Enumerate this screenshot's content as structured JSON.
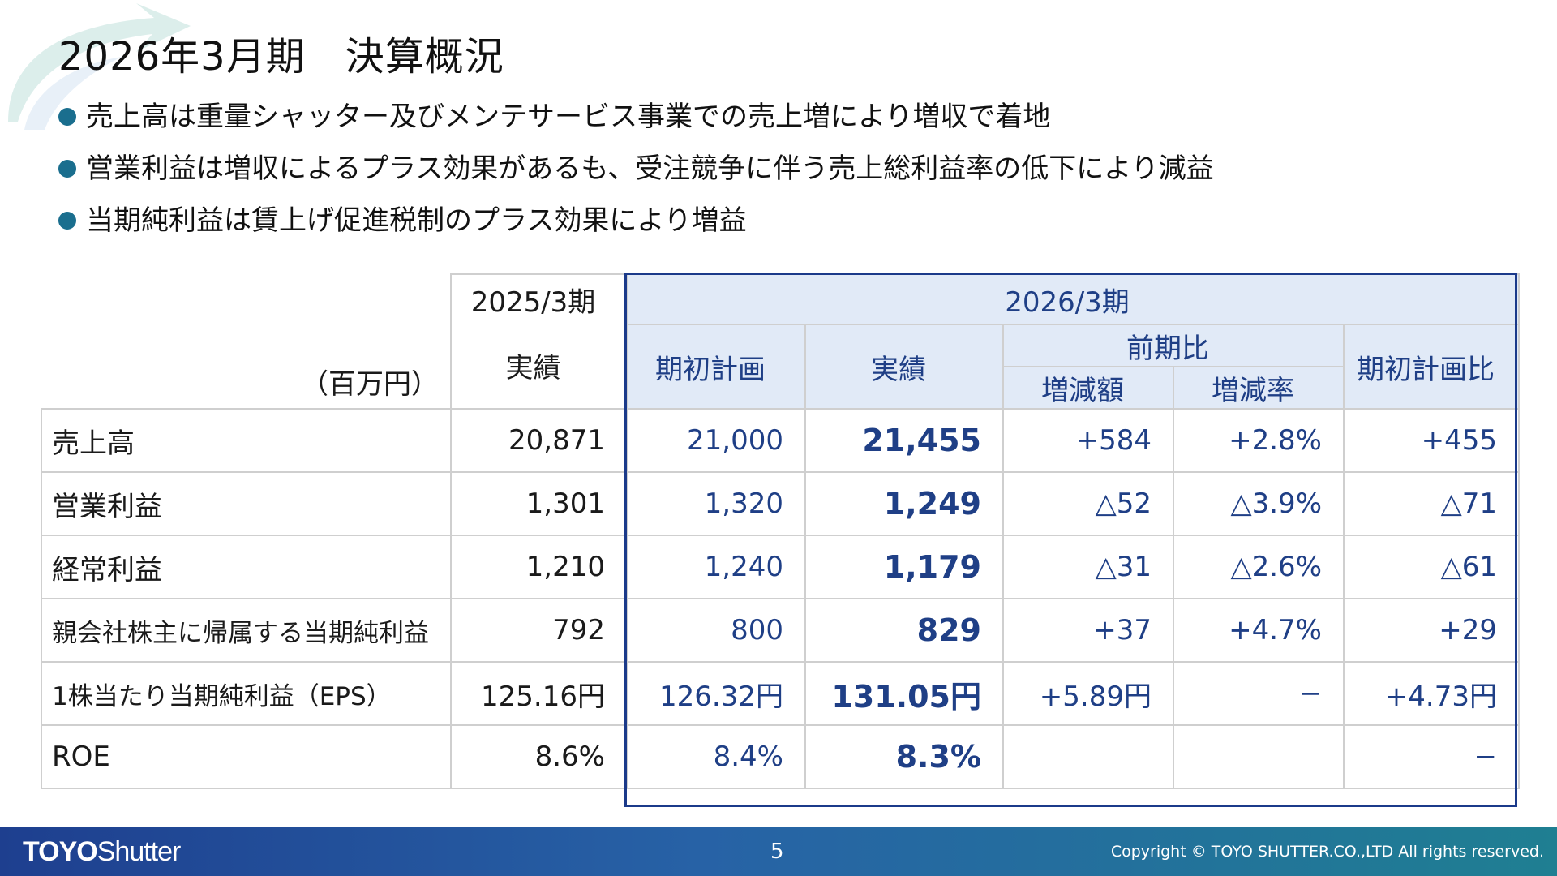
{
  "title": "2026年3月期　決算概況",
  "bullets": [
    "売上高は重量シャッター及びメンテサービス事業での売上増により増収で着地",
    "営業利益は増収によるプラス効果があるも、受注競争に伴う売上総利益率の低下により減益",
    "当期純利益は賃上げ促進税制のプラス効果により増益"
  ],
  "table": {
    "unit": "（百万円）",
    "prev_period": "2025/3期",
    "prev_col": "実績",
    "cur_period": "2026/3期",
    "cols": {
      "plan": "期初計画",
      "actual": "実績",
      "yoy": "前期比",
      "yoy_amount": "増減額",
      "yoy_rate": "増減率",
      "vs_plan": "期初計画比"
    },
    "rows": [
      {
        "label": "売上高",
        "prev": "20,871",
        "plan": "21,000",
        "actual": "21,455",
        "yoy_amount": "+584",
        "yoy_rate": "+2.8%",
        "vs_plan": "+455"
      },
      {
        "label": "営業利益",
        "prev": "1,301",
        "plan": "1,320",
        "actual": "1,249",
        "yoy_amount": "△52",
        "yoy_rate": "△3.9%",
        "vs_plan": "△71"
      },
      {
        "label": "経常利益",
        "prev": "1,210",
        "plan": "1,240",
        "actual": "1,179",
        "yoy_amount": "△31",
        "yoy_rate": "△2.6%",
        "vs_plan": "△61"
      },
      {
        "label": "親会社株主に帰属する当期純利益",
        "prev": "792",
        "plan": "800",
        "actual": "829",
        "yoy_amount": "+37",
        "yoy_rate": "+4.7%",
        "vs_plan": "+29"
      },
      {
        "label": "1株当たり当期純利益（EPS）",
        "prev": "125.16円",
        "plan": "126.32円",
        "actual": "131.05円",
        "yoy_amount": "+5.89円",
        "yoy_rate": "−",
        "vs_plan": "+4.73円"
      },
      {
        "label": "ROE",
        "prev": "8.6%",
        "plan": "8.4%",
        "actual": "8.3%",
        "yoy_amount": "",
        "yoy_rate": "",
        "vs_plan": "−"
      }
    ]
  },
  "footer": {
    "logo_bold": "TOYO",
    "logo_rest": "Shutter",
    "page": "5",
    "copyright": "Copyright © TOYO SHUTTER.CO.,LTD All rights reserved."
  },
  "colors": {
    "accent_navy": "#1b3a8a",
    "header_fill": "#e1eaf7",
    "bullet_dot": "#1a6e8e",
    "footer_gradient": [
      "#1e3f8f",
      "#1f7f92"
    ]
  }
}
